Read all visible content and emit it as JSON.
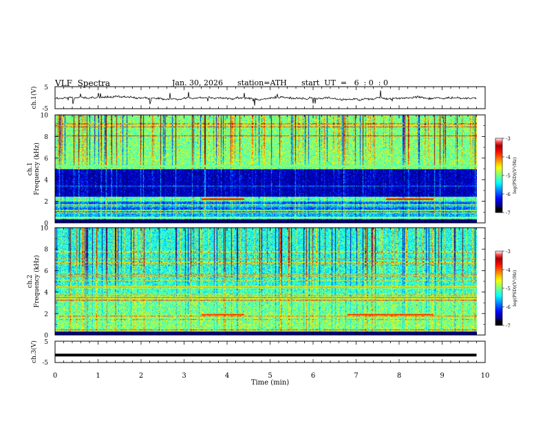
{
  "header": {
    "title": "VLF  Spectra",
    "date": "Jan. 30, 2026",
    "station": "station=ATH",
    "start": "start  UT  =   6  : 0  : 0"
  },
  "chart_data": [
    {
      "type": "line",
      "panel": "ch1-waveform",
      "ylabel": "ch.1(V)",
      "ytick_labels": [
        "5",
        "-5"
      ],
      "ylim": [
        -5,
        5
      ],
      "xlim": [
        0,
        9.8
      ],
      "values_description": "noisy waveform centred near 0 V"
    },
    {
      "type": "heatmap",
      "panel": "ch1-spectrogram",
      "ylabel": "ch.1\nFrequency  (kHz)",
      "ylabel_line1": "ch.1",
      "ylabel_line2": "Frequency  (kHz)",
      "yticks": [
        0,
        2,
        4,
        6,
        8,
        10
      ],
      "ytick_labels": [
        "0",
        "2",
        "4",
        "6",
        "8",
        "10"
      ],
      "ylim": [
        0,
        10
      ],
      "xlim": [
        0,
        9.8
      ],
      "colorbar": {
        "label": "log(PSD)(V²/Hz)",
        "ticks": [
          -3,
          -4,
          -5,
          -6,
          -7
        ],
        "tick_labels": [
          "-3",
          "-4",
          "-5",
          "-6",
          "-7"
        ],
        "range": [
          -7,
          -3
        ]
      },
      "bands": [
        {
          "f0": 0,
          "f1": 0.3,
          "level": -7.2
        },
        {
          "f0": 0.3,
          "f1": 1.0,
          "level": -5.8
        },
        {
          "f0": 1.0,
          "f1": 2.0,
          "level": -6.1
        },
        {
          "f0": 2.0,
          "f1": 2.4,
          "level": -5.2
        },
        {
          "f0": 2.4,
          "f1": 5.0,
          "level": -6.8
        },
        {
          "f0": 5.0,
          "f1": 10.0,
          "level": -5.0
        }
      ],
      "lines": [
        {
          "f": 2.2,
          "t0": 3.4,
          "t1": 4.4,
          "level": -3.3
        },
        {
          "f": 2.2,
          "t0": 7.7,
          "t1": 8.8,
          "level": -3.3
        },
        {
          "f": 5.3,
          "t0": 0,
          "t1": 9.8,
          "level": -4.7
        },
        {
          "f": 0.5,
          "t0": 0,
          "t1": 9.8,
          "level": -4.5
        }
      ]
    },
    {
      "type": "heatmap",
      "panel": "ch2-spectrogram",
      "ylabel": "ch.2\nFrequency  (kHz)",
      "ylabel_line1": "ch.2",
      "ylabel_line2": "Frequency  (kHz)",
      "yticks": [
        0,
        2,
        4,
        6,
        8,
        10
      ],
      "ytick_labels": [
        "0",
        "2",
        "4",
        "6",
        "8",
        "10"
      ],
      "ylim": [
        0,
        10
      ],
      "xlim": [
        0,
        9.8
      ],
      "colorbar": {
        "label": "log(PSD)(V²/Hz)",
        "ticks": [
          -3,
          -4,
          -5,
          -6,
          -7
        ],
        "tick_labels": [
          "-3",
          "-4",
          "-5",
          "-6",
          "-7"
        ],
        "range": [
          -7,
          -3
        ]
      },
      "bands": [
        {
          "f0": 0,
          "f1": 0.3,
          "level": -7.2
        },
        {
          "f0": 0.3,
          "f1": 2.0,
          "level": -5.0
        },
        {
          "f0": 2.0,
          "f1": 3.5,
          "level": -5.1
        },
        {
          "f0": 3.5,
          "f1": 4.6,
          "level": -5.3
        },
        {
          "f0": 4.6,
          "f1": 10.0,
          "level": -5.4
        }
      ],
      "lines": [
        {
          "f": 1.95,
          "t0": 3.4,
          "t1": 4.4,
          "level": -3.5
        },
        {
          "f": 1.95,
          "t0": 6.8,
          "t1": 8.8,
          "level": -3.5
        },
        {
          "f": 3.5,
          "t0": 0,
          "t1": 9.8,
          "level": -3.8
        },
        {
          "f": 4.5,
          "t0": 0,
          "t1": 9.8,
          "level": -4.0
        }
      ]
    },
    {
      "type": "line",
      "panel": "ch3-waveform",
      "ylabel": "ch.3(V)",
      "ytick_labels": [
        "5",
        "-5"
      ],
      "ylim": [
        -5,
        5
      ],
      "xlim": [
        0,
        9.8
      ],
      "values": {
        "constant": -1.5
      }
    }
  ],
  "xaxis": {
    "label": "Time  (min)",
    "ticks": [
      0,
      1,
      2,
      3,
      4,
      5,
      6,
      7,
      8,
      9,
      10
    ],
    "tick_labels": [
      "0",
      "1",
      "2",
      "3",
      "4",
      "5",
      "6",
      "7",
      "8",
      "9",
      "10"
    ],
    "range": [
      0,
      10
    ]
  },
  "colors": {
    "frame": "#000000",
    "background": "#ffffff"
  }
}
